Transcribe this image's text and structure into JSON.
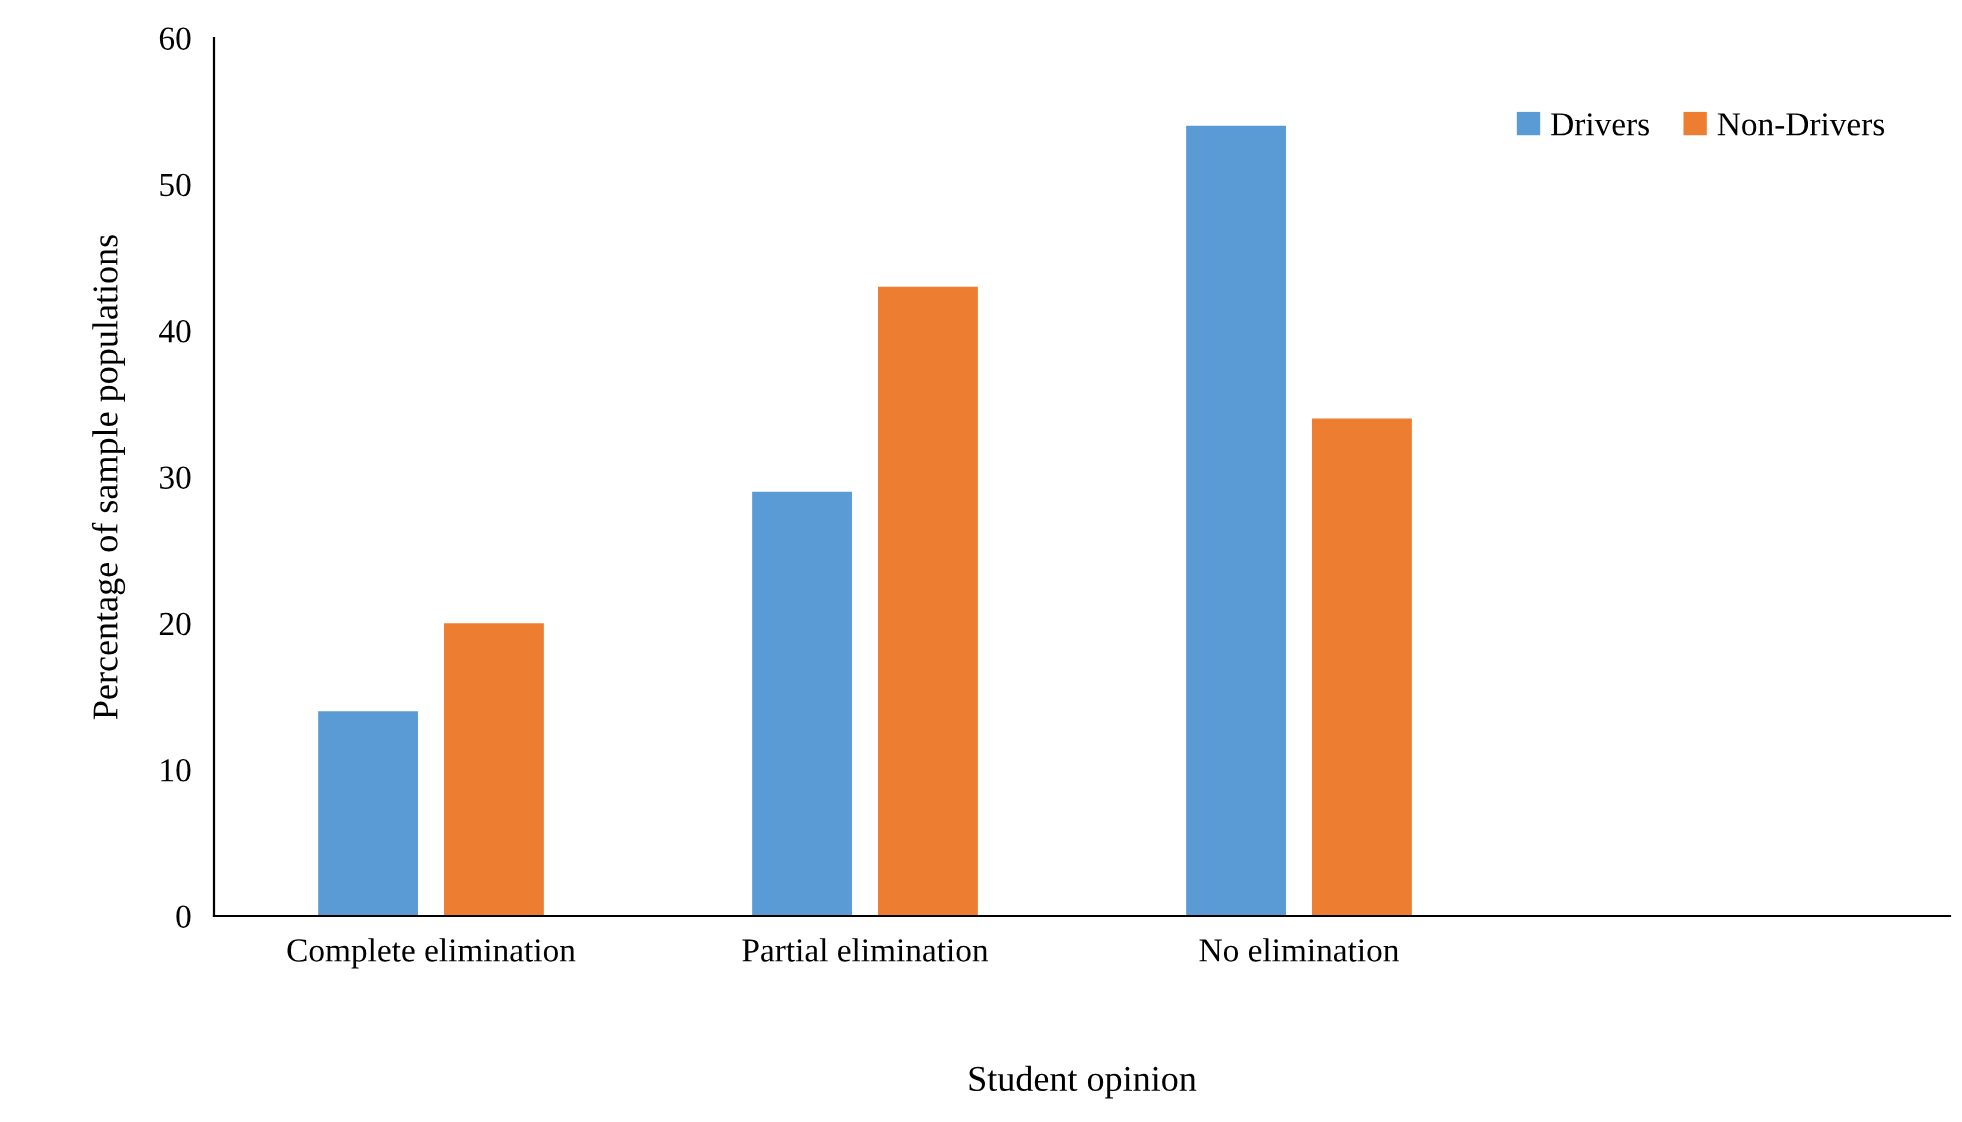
{
  "chart_data": {
    "type": "bar",
    "xlabel": "Student opinion",
    "ylabel": "Percentage of sample populations",
    "categories": [
      "Complete elimination",
      "Partial elimination",
      "No elimination",
      null
    ],
    "series": [
      {
        "name": "Drivers",
        "color": "#5b9bd5",
        "values": [
          14,
          29,
          54,
          null
        ]
      },
      {
        "name": "Non-Drivers",
        "color": "#ed7d31",
        "values": [
          20,
          43,
          34,
          null
        ]
      }
    ],
    "ylim": [
      0,
      60
    ],
    "yticks": [
      0,
      10,
      20,
      30,
      40,
      50,
      60
    ],
    "grid": false,
    "legend": "top right"
  }
}
